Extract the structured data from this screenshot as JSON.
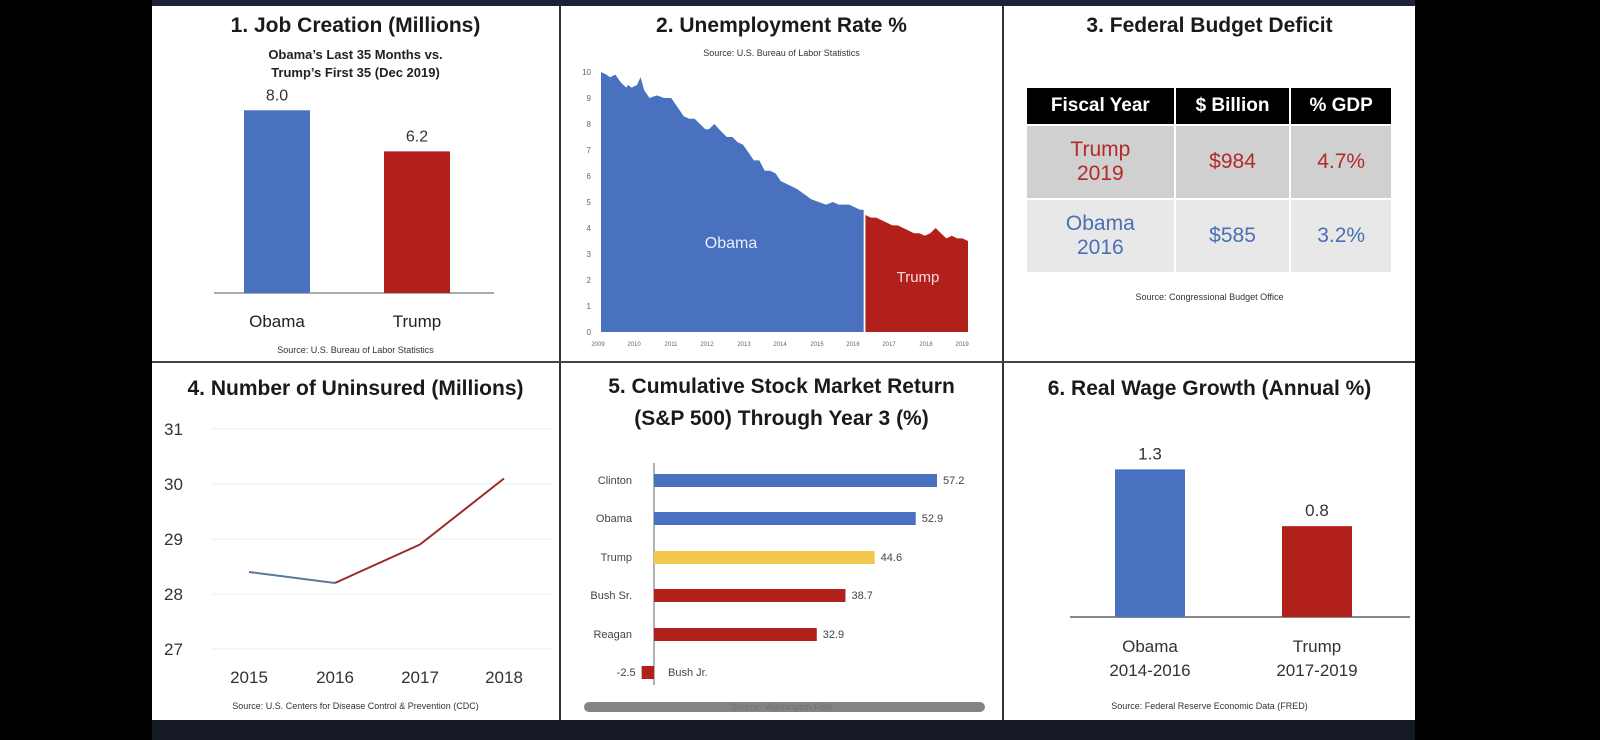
{
  "colors": {
    "obama": "#4a70c0",
    "trump": "#b2201b",
    "trump_stock": "#f2c94c",
    "gop_other": "#b2201b",
    "dem_other": "#4a70c0"
  },
  "chart_data": [
    {
      "type": "bar",
      "title": "1. Job Creation (Millions)",
      "subtitle": [
        "Obama’s Last 35 Months vs.",
        "Trump’s First 35 (Dec 2019)"
      ],
      "categories": [
        "Obama",
        "Trump"
      ],
      "values": [
        8.0,
        6.2
      ],
      "data_labels": [
        "8.0",
        "6.2"
      ],
      "ylim": [
        0,
        9.5
      ],
      "source": "Source:  U.S. Bureau of Labor Statistics"
    },
    {
      "type": "area",
      "title": "2. Unemployment Rate %",
      "source": "Source:  U.S. Bureau of Labor Statistics",
      "ylim": [
        0,
        10
      ],
      "yticks": [
        "0",
        "1",
        "2",
        "3",
        "4",
        "5",
        "6",
        "7",
        "8",
        "9",
        "10"
      ],
      "xticks": [
        "2009",
        "2010",
        "2011",
        "2012",
        "2013",
        "2014",
        "2015",
        "2016",
        "2017",
        "2018",
        "2019"
      ],
      "xlim": [
        2009.75,
        2019.95
      ],
      "series": [
        {
          "name": "Obama",
          "label": "Obama",
          "x": [
            2009.75,
            2009.9,
            2010.0,
            2010.15,
            2010.3,
            2010.45,
            2010.5,
            2010.6,
            2010.75,
            2010.85,
            2010.95,
            2011.1,
            2011.3,
            2011.5,
            2011.7,
            2011.9,
            2012.05,
            2012.2,
            2012.35,
            2012.5,
            2012.65,
            2012.75,
            2012.9,
            2013.1,
            2013.25,
            2013.4,
            2013.55,
            2013.7,
            2013.85,
            2014.0,
            2014.15,
            2014.3,
            2014.45,
            2014.6,
            2014.75,
            2014.9,
            2015.05,
            2015.2,
            2015.4,
            2015.6,
            2015.8,
            2016.0,
            2016.2,
            2016.35,
            2016.5,
            2016.65,
            2016.8,
            2016.95,
            2017.05
          ],
          "values": [
            10.0,
            9.9,
            9.8,
            9.9,
            9.6,
            9.4,
            9.5,
            9.4,
            9.5,
            9.8,
            9.3,
            9.0,
            9.1,
            9.0,
            9.0,
            8.6,
            8.3,
            8.2,
            8.2,
            8.0,
            7.8,
            7.8,
            8.0,
            7.7,
            7.5,
            7.5,
            7.3,
            7.2,
            6.9,
            6.6,
            6.6,
            6.2,
            6.2,
            6.1,
            5.8,
            5.7,
            5.6,
            5.5,
            5.3,
            5.1,
            5.0,
            4.9,
            5.0,
            4.9,
            4.9,
            4.9,
            4.8,
            4.7,
            4.7
          ]
        },
        {
          "name": "Trump",
          "label": "Trump",
          "x": [
            2017.1,
            2017.25,
            2017.4,
            2017.55,
            2017.7,
            2017.85,
            2018.0,
            2018.15,
            2018.3,
            2018.45,
            2018.6,
            2018.75,
            2018.9,
            2019.05,
            2019.2,
            2019.35,
            2019.5,
            2019.65,
            2019.8,
            2019.95
          ],
          "values": [
            4.5,
            4.4,
            4.4,
            4.3,
            4.2,
            4.1,
            4.1,
            4.0,
            3.9,
            3.8,
            3.8,
            3.7,
            3.8,
            4.0,
            3.8,
            3.6,
            3.7,
            3.6,
            3.6,
            3.5
          ]
        }
      ]
    },
    {
      "type": "table",
      "title": "3. Federal Budget Deficit",
      "columns": [
        "Fiscal Year",
        "$ Billion",
        "% GDP"
      ],
      "rows": [
        {
          "party": "trump",
          "cells": [
            "Trump 2019",
            "$984",
            "4.7%"
          ],
          "year_line1": "Trump",
          "year_line2": "2019"
        },
        {
          "party": "obama",
          "cells": [
            "Obama 2016",
            "$585",
            "3.2%"
          ],
          "year_line1": "Obama",
          "year_line2": "2016"
        }
      ],
      "source": "Source:  Congressional Budget Office"
    },
    {
      "type": "line",
      "title": "4. Number of Uninsured (Millions)",
      "x": [
        "2015",
        "2016",
        "2017",
        "2018"
      ],
      "values": [
        28.4,
        28.2,
        28.9,
        30.1
      ],
      "segment_colors": [
        "obama",
        "trump",
        "trump"
      ],
      "ylim": [
        27,
        31
      ],
      "yticks": [
        "27",
        "28",
        "29",
        "30",
        "31"
      ],
      "grid": true,
      "source": "Source:  U.S. Centers for Disease Control & Prevention (CDC)"
    },
    {
      "type": "bar",
      "orientation": "horizontal",
      "title": [
        "5. Cumulative Stock Market Return",
        "(S&P 500) Through Year 3 (%)"
      ],
      "categories": [
        "Clinton",
        "Obama",
        "Trump",
        "Bush Sr.",
        "Reagan",
        "Bush Jr."
      ],
      "values": [
        57.2,
        52.9,
        44.6,
        38.7,
        32.9,
        -2.5
      ],
      "data_labels": [
        "57.2",
        "52.9",
        "44.6",
        "38.7",
        "32.9",
        "-2.5"
      ],
      "bar_colors": [
        "dem_other",
        "dem_other",
        "trump_stock",
        "gop_other",
        "gop_other",
        "gop_other"
      ],
      "xlim": [
        -10,
        57.2
      ],
      "source": "Source:  Washington Post"
    },
    {
      "type": "bar",
      "title": "6. Real Wage Growth (Annual %)",
      "categories": [
        "Obama 2014-2016",
        "Trump 2017-2019"
      ],
      "cat_line1": [
        "Obama",
        "Trump"
      ],
      "cat_line2": [
        "2014-2016",
        "2017-2019"
      ],
      "values": [
        1.3,
        0.8
      ],
      "data_labels": [
        "1.3",
        "0.8"
      ],
      "ylim": [
        0,
        1.55
      ],
      "source": "Source:  Federal Reserve Economic Data (FRED)"
    }
  ]
}
